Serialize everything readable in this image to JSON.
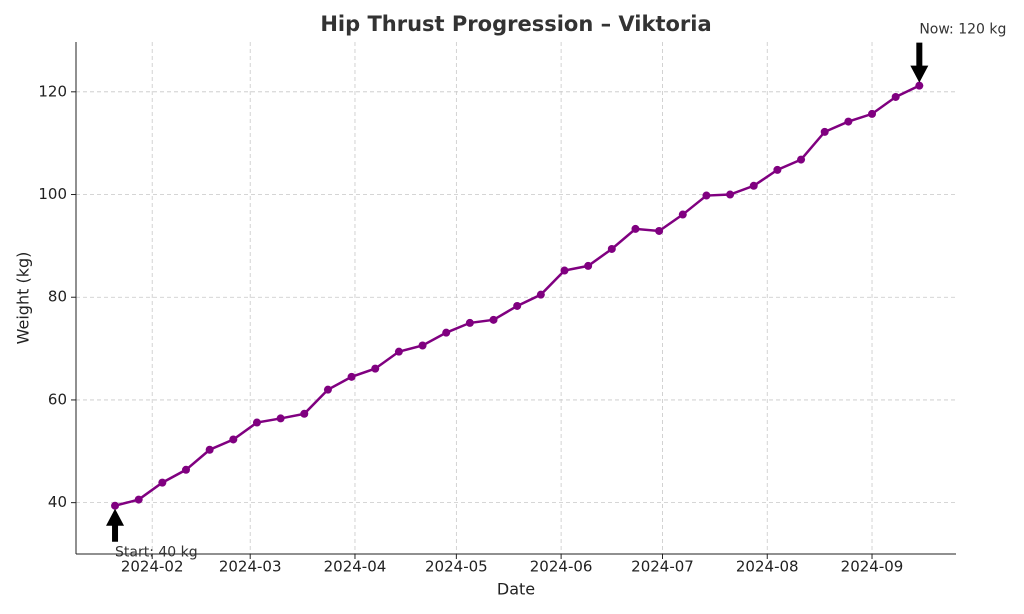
{
  "chart_data": {
    "type": "line",
    "title": "Hip Thrust Progression – Viktoria",
    "x_label": "Date",
    "y_label": "Weight (kg)",
    "categories": [
      null,
      null,
      null,
      null,
      null,
      null,
      null,
      null,
      null,
      null,
      null,
      null,
      null,
      null,
      null,
      null,
      null,
      null,
      null,
      null,
      null,
      null,
      null,
      null,
      null,
      null,
      null,
      null,
      null,
      null,
      null,
      null,
      null,
      null,
      null
    ],
    "series": [
      {
        "name": "Weight",
        "color": "#800080",
        "values": [
          39.4,
          40.6,
          43.9,
          46.4,
          50.3,
          52.3,
          55.6,
          56.4,
          57.3,
          62.0,
          64.5,
          66.1,
          69.4,
          70.6,
          73.1,
          75.0,
          75.6,
          78.3,
          80.5,
          85.2,
          86.1,
          89.4,
          93.3,
          92.9,
          96.1,
          99.8,
          100.0,
          101.7,
          104.8,
          106.8,
          112.2,
          114.2,
          115.7,
          119.0,
          121.2
        ]
      }
    ],
    "xlim": [
      -1.65,
      35.55
    ],
    "xticks": [
      {
        "value": 1.571,
        "label": "2024-02"
      },
      {
        "value": 5.714,
        "label": "2024-03"
      },
      {
        "value": 10.143,
        "label": "2024-04"
      },
      {
        "value": 14.429,
        "label": "2024-05"
      },
      {
        "value": 18.857,
        "label": "2024-06"
      },
      {
        "value": 23.143,
        "label": "2024-07"
      },
      {
        "value": 27.571,
        "label": "2024-08"
      },
      {
        "value": 32,
        "label": "2024-09"
      }
    ],
    "ylim": [
      30,
      129.7
    ],
    "yticks": [
      40,
      60,
      80,
      100,
      120
    ],
    "grid": true,
    "annotations": [
      {
        "text": "Start: 40 kg"
      },
      {
        "text": "Now: 120 kg"
      }
    ]
  }
}
